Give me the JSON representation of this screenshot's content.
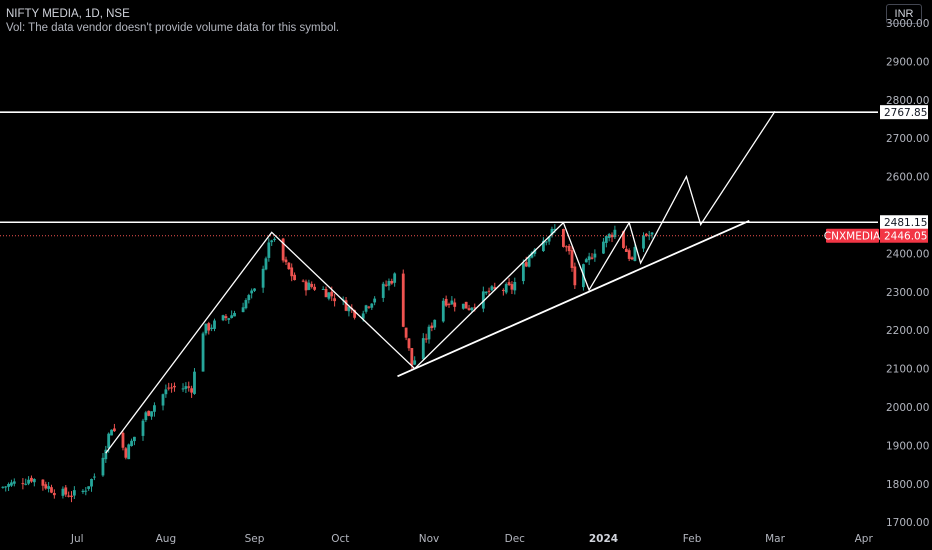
{
  "header": {
    "title": "NIFTY MEDIA, 1D, NSE",
    "volume_note": "Vol: The data vendor doesn't provide volume data for this symbol.",
    "currency": "INR"
  },
  "colors": {
    "up": "#26a69a",
    "down": "#ef5350",
    "line": "#ffffff",
    "grid": "#000000",
    "bg": "#000000",
    "symbol_label_bg": "#f23645"
  },
  "chart_data": {
    "type": "candlestick",
    "title": "NIFTY MEDIA, 1D, NSE",
    "ylim": [
      1690,
      3060
    ],
    "y_ticks": [
      1700,
      1800,
      1900,
      2000,
      2100,
      2200,
      2300,
      2400,
      2600,
      2700,
      2800,
      2900,
      3000
    ],
    "y_tick_labels": [
      "1700.00",
      "1800.00",
      "1900.00",
      "2000.00",
      "2100.00",
      "2200.00",
      "2300.00",
      "2400.00",
      "2600.00",
      "2700.00",
      "2800.00",
      "2900.00",
      "3000.00"
    ],
    "x_ticks": [
      {
        "label": "Jul",
        "date": "2023-07-01",
        "bold": false
      },
      {
        "label": "Aug",
        "date": "2023-08-01",
        "bold": false
      },
      {
        "label": "Sep",
        "date": "2023-09-01",
        "bold": false
      },
      {
        "label": "Oct",
        "date": "2023-10-01",
        "bold": false
      },
      {
        "label": "Nov",
        "date": "2023-11-01",
        "bold": false
      },
      {
        "label": "Dec",
        "date": "2023-12-01",
        "bold": false
      },
      {
        "label": "2024",
        "date": "2024-01-01",
        "bold": true
      },
      {
        "label": "Feb",
        "date": "2024-02-01",
        "bold": false
      },
      {
        "label": "Mar",
        "date": "2024-03-01",
        "bold": false
      },
      {
        "label": "Apr",
        "date": "2024-04-01",
        "bold": false
      }
    ],
    "x_range": [
      "2023-06-04",
      "2024-04-06"
    ],
    "price_levels": [
      {
        "name": "resistance-upper",
        "value": 2767.85,
        "label": "2767.85",
        "style": "solid"
      },
      {
        "name": "resistance-lower",
        "value": 2481.15,
        "label": "2481.15",
        "style": "solid"
      }
    ],
    "current_price": {
      "symbol": "CNXMEDIA",
      "value": 2446.05,
      "label": "2446.05"
    },
    "candle_anchors": [
      [
        "2023-06-04",
        1790
      ],
      [
        "2023-06-15",
        1815
      ],
      [
        "2023-06-25",
        1775
      ],
      [
        "2023-07-02",
        1770
      ],
      [
        "2023-07-08",
        1830
      ],
      [
        "2023-07-13",
        1950
      ],
      [
        "2023-07-18",
        1880
      ],
      [
        "2023-07-25",
        1980
      ],
      [
        "2023-08-02",
        2050
      ],
      [
        "2023-08-10",
        2050
      ],
      [
        "2023-08-14",
        2200
      ],
      [
        "2023-08-24",
        2240
      ],
      [
        "2023-09-01",
        2300
      ],
      [
        "2023-09-07",
        2440
      ],
      [
        "2023-09-11",
        2380
      ],
      [
        "2023-09-16",
        2320
      ],
      [
        "2023-09-24",
        2310
      ],
      [
        "2023-10-02",
        2270
      ],
      [
        "2023-10-07",
        2240
      ],
      [
        "2023-10-12",
        2280
      ],
      [
        "2023-10-20",
        2340
      ],
      [
        "2023-10-23",
        2220
      ],
      [
        "2023-10-26",
        2110
      ],
      [
        "2023-10-29",
        2150
      ],
      [
        "2023-11-06",
        2280
      ],
      [
        "2023-11-15",
        2260
      ],
      [
        "2023-11-22",
        2300
      ],
      [
        "2023-11-30",
        2310
      ],
      [
        "2023-12-08",
        2420
      ],
      [
        "2023-12-15",
        2460
      ],
      [
        "2023-12-20",
        2400
      ],
      [
        "2023-12-22",
        2320
      ],
      [
        "2023-12-29",
        2410
      ],
      [
        "2024-01-05",
        2460
      ],
      [
        "2024-01-11",
        2380
      ],
      [
        "2024-01-14",
        2450
      ],
      [
        "2024-01-18",
        2446
      ]
    ],
    "drawings": [
      {
        "name": "zigzag-rally",
        "points": [
          [
            "2023-07-11",
            1880
          ],
          [
            "2023-09-07",
            2455
          ],
          [
            "2023-10-27",
            2100
          ],
          [
            "2023-12-18",
            2480
          ],
          [
            "2023-12-27",
            2305
          ],
          [
            "2024-01-10",
            2480
          ],
          [
            "2024-01-14",
            2375
          ],
          [
            "2024-01-30",
            2600
          ],
          [
            "2024-02-04",
            2475
          ],
          [
            "2024-03-01",
            2770
          ]
        ]
      },
      {
        "name": "ascending-trendline",
        "points": [
          [
            "2023-10-21",
            2080
          ],
          [
            "2024-02-21",
            2485
          ]
        ]
      }
    ]
  }
}
